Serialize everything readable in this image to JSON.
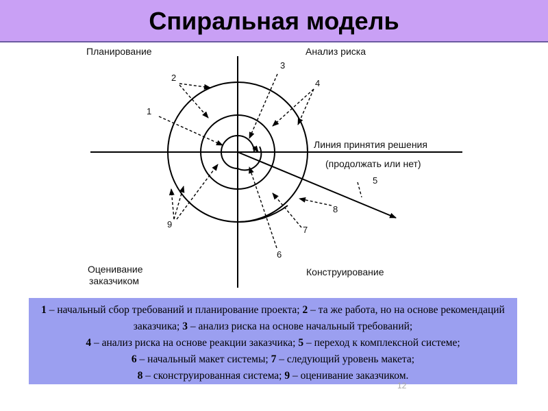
{
  "title": "Спиральная модель",
  "quadrants": {
    "planning": "Планирование",
    "risk": "Анализ риска",
    "evaluation_line1": "Оценивание",
    "evaluation_line2": "заказчиком",
    "construction": "Конструирование"
  },
  "decision_line": {
    "line1": "Линия принятия решения",
    "line2": "(продолжать или нет)"
  },
  "markers": [
    "1",
    "2",
    "3",
    "4",
    "5",
    "6",
    "7",
    "8",
    "9"
  ],
  "legend": [
    {
      "n": "1",
      "t": " – начальный сбор требований и планирование проекта; "
    },
    {
      "n": "2",
      "t": " – та же работа, но на основе рекомендаций заказчика; "
    },
    {
      "n": "3",
      "t": " – анализ риска на основе начальный требований; "
    },
    {
      "n": "4",
      "t": " – анализ риска на основе реакции заказчика; "
    },
    {
      "n": "5",
      "t": " – переход к комплексной системе; "
    },
    {
      "n": "6",
      "t": " – начальный макет системы; "
    },
    {
      "n": "7",
      "t": " – следующий уровень макета; "
    },
    {
      "n": "8",
      "t": " – сконструированная система; "
    },
    {
      "n": "9",
      "t": " – оценивание заказчиком."
    }
  ],
  "page_number": "12"
}
